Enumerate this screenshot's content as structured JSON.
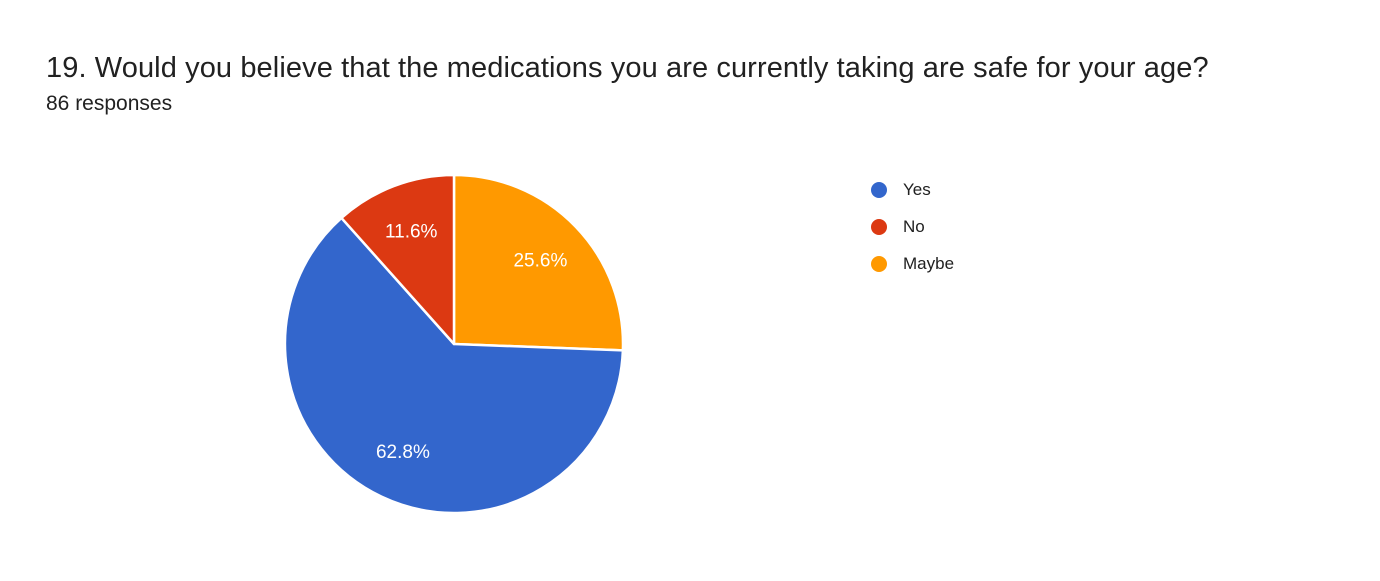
{
  "header": {
    "title": "19. Would you believe that the medications you are currently taking are safe for your age?",
    "responses_count": "86 responses"
  },
  "chart_data": {
    "type": "pie",
    "title": "19. Would you believe that the medications you are currently taking are safe for your age?",
    "subtitle": "86 responses",
    "legend_position": "right",
    "legend_entries": [
      "Yes",
      "No",
      "Maybe"
    ],
    "slices": [
      {
        "label": "Yes",
        "value": 62.8,
        "percent_label": "62.8%",
        "color": "#3366CC"
      },
      {
        "label": "No",
        "value": 11.6,
        "percent_label": "11.6%",
        "color": "#DC3912"
      },
      {
        "label": "Maybe",
        "value": 25.6,
        "percent_label": "25.6%",
        "color": "#FF9900"
      }
    ],
    "draw_order_clockwise_from_top": [
      "Maybe",
      "Yes",
      "No"
    ],
    "slice_label_color": "#ffffff",
    "separator_color": "#ffffff"
  }
}
